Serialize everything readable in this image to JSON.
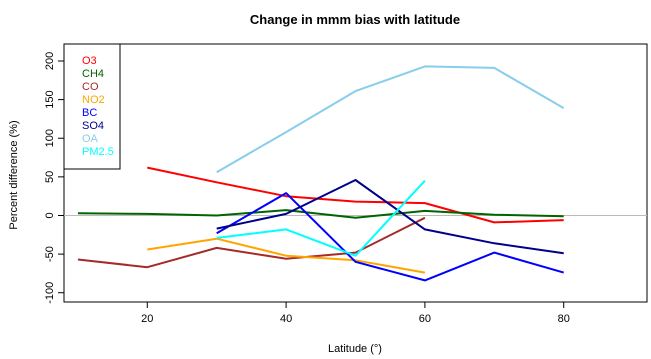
{
  "chart_data": {
    "type": "line",
    "title": "Change in mmm bias with latitude",
    "xlabel": "Latitude (°)",
    "ylabel": "Percent difference (%)",
    "xlim": [
      8,
      92
    ],
    "ylim": [
      -112,
      222
    ],
    "x_ticks": [
      20,
      40,
      60,
      80
    ],
    "y_ticks": [
      -100,
      -50,
      0,
      50,
      100,
      150,
      200
    ],
    "zero_line": true,
    "grid": false,
    "legend_position": "top-left",
    "series": [
      {
        "name": "O3",
        "color": "#ff0000",
        "x": [
          20,
          30,
          40,
          50,
          60,
          70,
          80
        ],
        "y": [
          62,
          43,
          25,
          18,
          16,
          -9,
          -6
        ]
      },
      {
        "name": "CH4",
        "color": "#006400",
        "x": [
          10,
          20,
          30,
          40,
          50,
          60,
          70,
          80
        ],
        "y": [
          3,
          2,
          0,
          7,
          -3,
          6,
          1,
          -1
        ]
      },
      {
        "name": "CO",
        "color": "#a52a2a",
        "x": [
          10,
          20,
          30,
          40,
          50,
          60
        ],
        "y": [
          -57,
          -67,
          -42,
          -56,
          -48,
          -3
        ]
      },
      {
        "name": "NO2",
        "color": "#ffa500",
        "x": [
          20,
          30,
          40,
          50,
          60
        ],
        "y": [
          -44,
          -30,
          -52,
          -58,
          -74
        ]
      },
      {
        "name": "BC",
        "color": "#0000ff",
        "x": [
          30,
          40,
          50,
          60,
          70,
          80
        ],
        "y": [
          -23,
          29,
          -60,
          -84,
          -48,
          -74
        ]
      },
      {
        "name": "SO4",
        "color": "#00008b",
        "x": [
          30,
          40,
          50,
          60,
          70,
          80
        ],
        "y": [
          -17,
          2,
          46,
          -18,
          -36,
          -49
        ]
      },
      {
        "name": "OA",
        "color": "#87ceeb",
        "x": [
          30,
          40,
          50,
          60,
          70,
          80
        ],
        "y": [
          56,
          108,
          161,
          193,
          191,
          139
        ]
      },
      {
        "name": "PM2.5",
        "color": "#00ffff",
        "x": [
          30,
          40,
          50,
          60
        ],
        "y": [
          -29,
          -18,
          -52,
          45
        ]
      }
    ]
  }
}
